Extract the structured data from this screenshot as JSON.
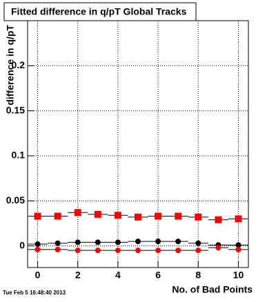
{
  "chart_data": {
    "type": "scatter",
    "title": "Fitted difference in q/pT  Global Tracks",
    "x_label": "No. of Bad Points",
    "y_label": "difference in q/pT",
    "footer": "Tue Feb  5 16:48:40 2013",
    "x": [
      0,
      1,
      2,
      3,
      4,
      5,
      6,
      7,
      8,
      9,
      10
    ],
    "series": [
      {
        "color": "#ff0000",
        "marker": "square",
        "values": [
          0.033,
          0.033,
          0.037,
          0.035,
          0.034,
          0.032,
          0.033,
          0.033,
          0.032,
          0.029,
          0.03
        ]
      },
      {
        "color": "#000000",
        "marker": "circle",
        "values": [
          0.002,
          0.003,
          0.004,
          0.004,
          0.004,
          0.005,
          0.005,
          0.005,
          0.003,
          0.001,
          0.001
        ]
      },
      {
        "color": "#ff0000",
        "marker": "circle",
        "values": [
          -0.004,
          -0.004,
          -0.005,
          -0.005,
          -0.005,
          -0.005,
          -0.005,
          -0.005,
          -0.005,
          -0.002,
          -0.004
        ]
      }
    ],
    "xlim": [
      -0.5,
      10.5
    ],
    "xticks": [
      0,
      2,
      4,
      6,
      8,
      10
    ],
    "ylim": [
      -0.024,
      0.25
    ],
    "yticks": [
      0,
      0.05,
      0.1,
      0.15,
      0.2
    ],
    "grid": true
  }
}
